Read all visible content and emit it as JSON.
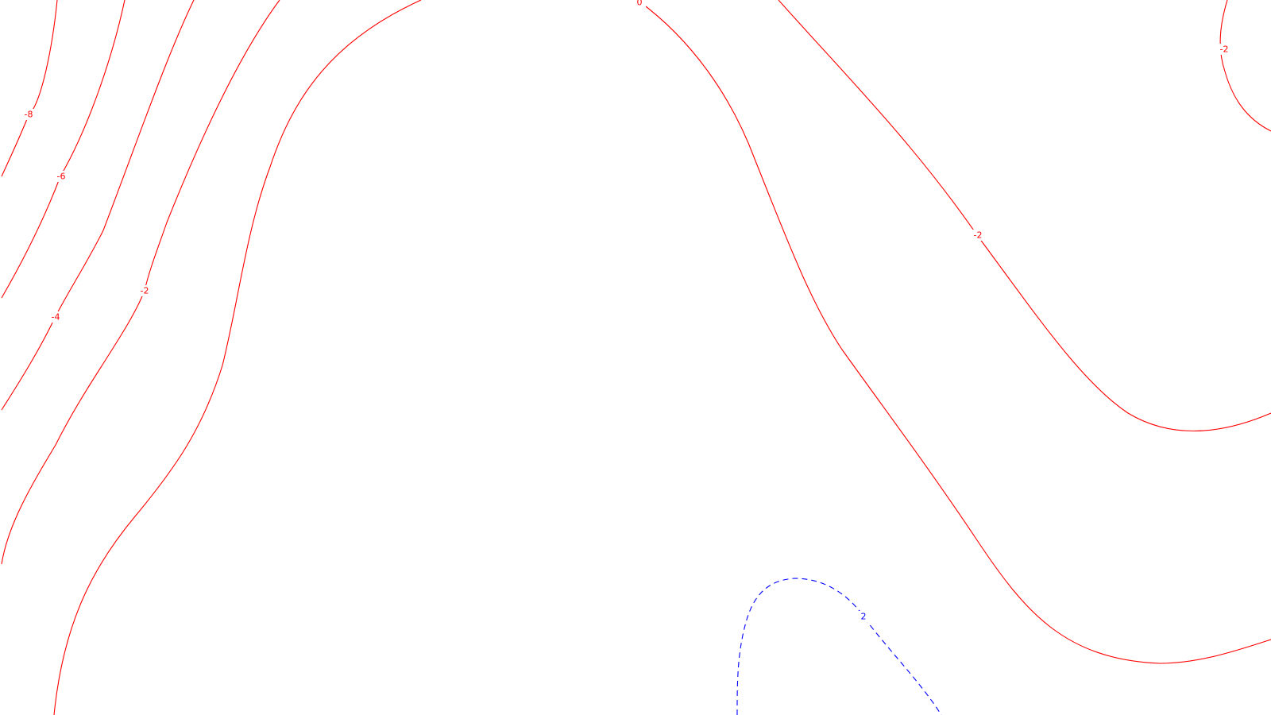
{
  "map": {
    "type": "contour",
    "colors": {
      "negative": "#ff0000",
      "positive": "#0000ff",
      "background": "#ffffff"
    },
    "labels": {
      "m8": "-8",
      "m6": "-6",
      "m4": "-4",
      "m2_left": "-2",
      "zero": "0",
      "m2_mid": "-2",
      "m2_corner": "-2",
      "p2": "2"
    }
  }
}
